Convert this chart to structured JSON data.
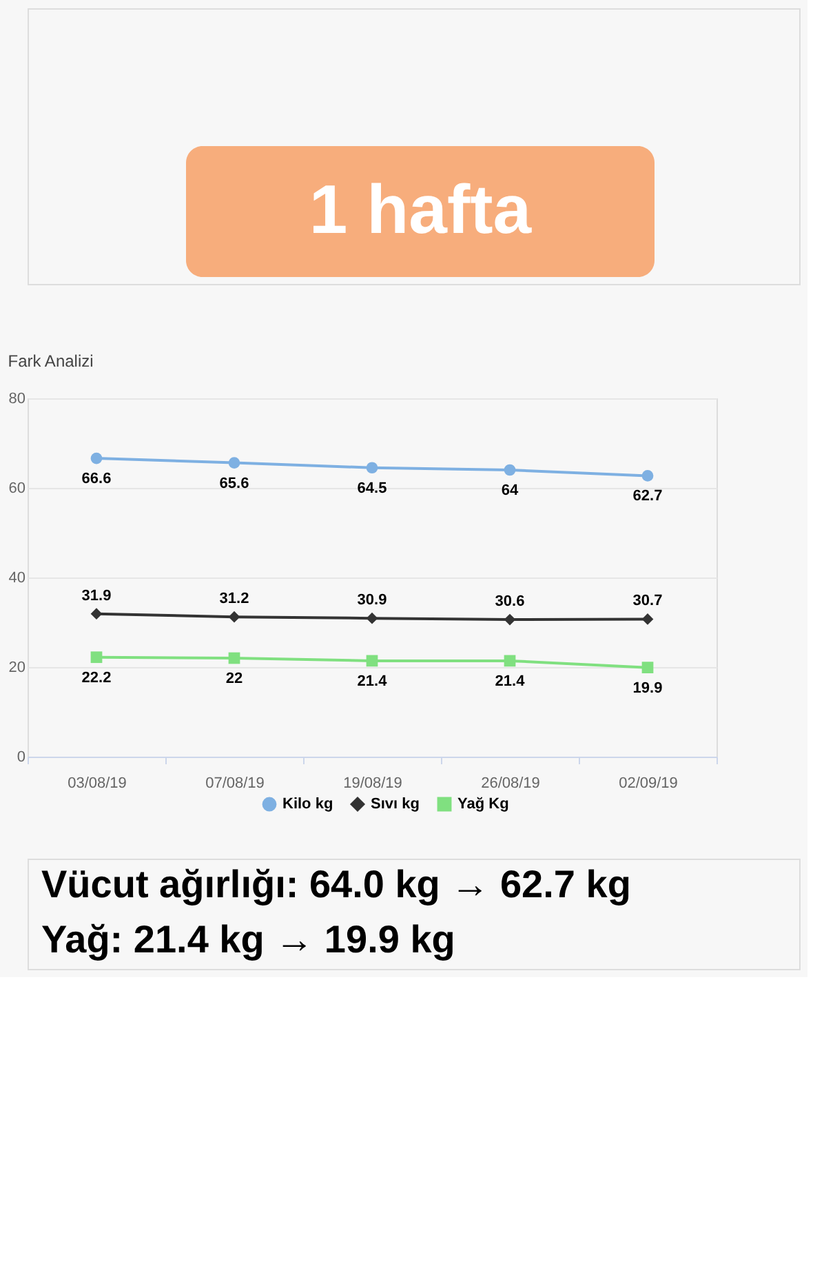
{
  "chart_data": {
    "type": "line",
    "title": "Fark Analizi",
    "categories": [
      "03/08/19",
      "07/08/19",
      "19/08/19",
      "26/08/19",
      "02/09/19"
    ],
    "series": [
      {
        "name": "Kilo kg",
        "color": "#7eb0e2",
        "marker": "circle",
        "values": [
          66.6,
          65.6,
          64.5,
          64,
          62.7
        ]
      },
      {
        "name": "Sıvı kg",
        "color": "#333333",
        "marker": "diamond",
        "values": [
          31.9,
          31.2,
          30.9,
          30.6,
          30.7
        ]
      },
      {
        "name": "Yağ Kg",
        "color": "#80e080",
        "marker": "square",
        "values": [
          22.2,
          22,
          21.4,
          21.4,
          19.9
        ]
      }
    ],
    "ylim": [
      0,
      80
    ],
    "yticks": [
      0,
      20,
      40,
      60,
      80
    ],
    "grid": "y",
    "legend": "bottom",
    "data_labels": true,
    "line_style": "solid",
    "annotations": [
      "1 hafta",
      "Vücut ağırlığı: 64.0 kg → 62.7 kg",
      "Yağ: 21.4 kg → 19.9 kg"
    ]
  }
}
